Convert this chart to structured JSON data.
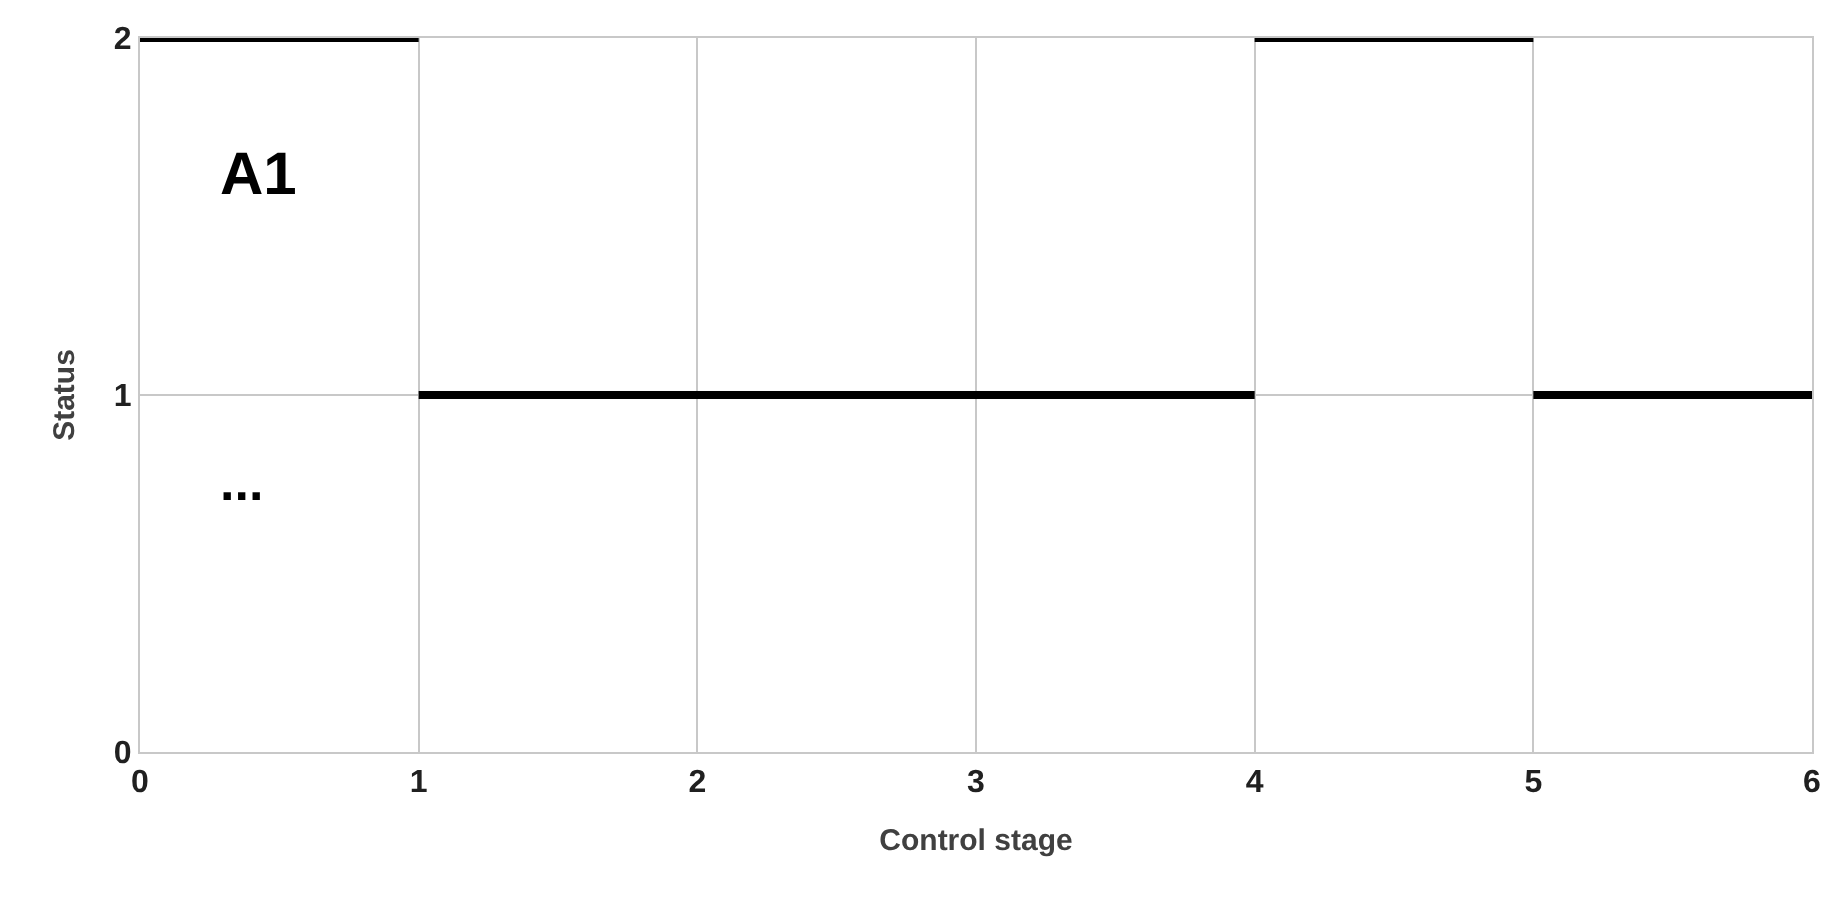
{
  "chart_data": {
    "type": "line",
    "xlabel": "Control stage",
    "ylabel": "Status",
    "xlim": [
      0,
      6
    ],
    "xticks": [
      0,
      1,
      2,
      3,
      4,
      5,
      6
    ],
    "ylim": [
      0,
      2
    ],
    "yticks": [
      0,
      1,
      2
    ],
    "grid": true,
    "marker": "none",
    "line_style": "solid",
    "series": [
      {
        "color": "#000000",
        "x": [
          0,
          1
        ],
        "values": [
          2,
          2
        ]
      },
      {
        "color": "#000000",
        "x": [
          1,
          4
        ],
        "values": [
          1,
          1
        ]
      },
      {
        "color": "#000000",
        "x": [
          4,
          5
        ],
        "values": [
          2,
          2
        ]
      },
      {
        "color": "#000000",
        "x": [
          5,
          6
        ],
        "values": [
          1,
          1
        ]
      }
    ],
    "annotations": [
      "A1",
      "..."
    ]
  }
}
